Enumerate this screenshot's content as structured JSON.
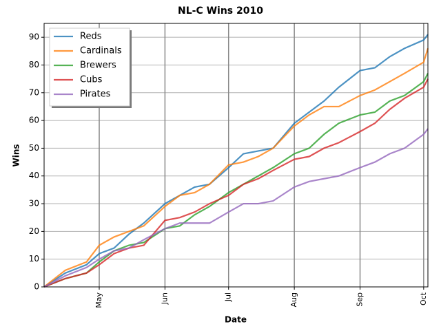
{
  "chart_data": {
    "type": "line",
    "title": "NL-C Wins 2010",
    "x_label": "Date",
    "y_label": "Wins",
    "x": [
      95,
      105,
      115,
      121,
      128,
      135,
      142,
      152,
      159,
      166,
      173,
      182,
      189,
      196,
      203,
      213,
      220,
      227,
      234,
      244,
      251,
      258,
      265,
      274,
      276
    ],
    "series": [
      {
        "name": "Reds",
        "color": "#1f77b4",
        "values": [
          0,
          5,
          8,
          12,
          14,
          19,
          23,
          30,
          33,
          36,
          37,
          43,
          48,
          49,
          50,
          59,
          63,
          67,
          72,
          78,
          79,
          83,
          86,
          89,
          91
        ]
      },
      {
        "name": "Cardinals",
        "color": "#ff7f0e",
        "values": [
          0,
          6,
          9,
          15,
          18,
          20,
          22,
          29,
          33,
          34,
          37,
          44,
          45,
          47,
          50,
          58,
          62,
          65,
          65,
          69,
          71,
          74,
          77,
          81,
          86
        ]
      },
      {
        "name": "Brewers",
        "color": "#2ca02c",
        "values": [
          0,
          3,
          5,
          9,
          13,
          15,
          16,
          21,
          22,
          26,
          29,
          34,
          37,
          40,
          43,
          48,
          50,
          55,
          59,
          62,
          63,
          67,
          69,
          74,
          77
        ]
      },
      {
        "name": "Cubs",
        "color": "#d62728",
        "values": [
          0,
          3,
          5,
          8,
          12,
          14,
          15,
          24,
          25,
          27,
          30,
          33,
          37,
          39,
          42,
          46,
          47,
          50,
          52,
          56,
          59,
          64,
          68,
          72,
          75
        ]
      },
      {
        "name": "Pirates",
        "color": "#9467bd",
        "values": [
          0,
          4,
          7,
          10,
          13,
          14,
          17,
          21,
          23,
          23,
          23,
          27,
          30,
          30,
          31,
          36,
          38,
          39,
          40,
          43,
          45,
          48,
          50,
          55,
          57
        ]
      }
    ],
    "xlim": [
      95,
      276
    ],
    "xticks": [
      {
        "value": 121,
        "label": "May"
      },
      {
        "value": 152,
        "label": "Jun"
      },
      {
        "value": 182,
        "label": "Jul"
      },
      {
        "value": 213,
        "label": "Aug"
      },
      {
        "value": 244,
        "label": "Sep"
      },
      {
        "value": 274,
        "label": "Oct"
      }
    ],
    "ylim": [
      0,
      95
    ],
    "yticks": [
      0,
      10,
      20,
      30,
      40,
      50,
      60,
      70,
      80,
      90
    ],
    "grid": true,
    "legend": "upper left"
  }
}
